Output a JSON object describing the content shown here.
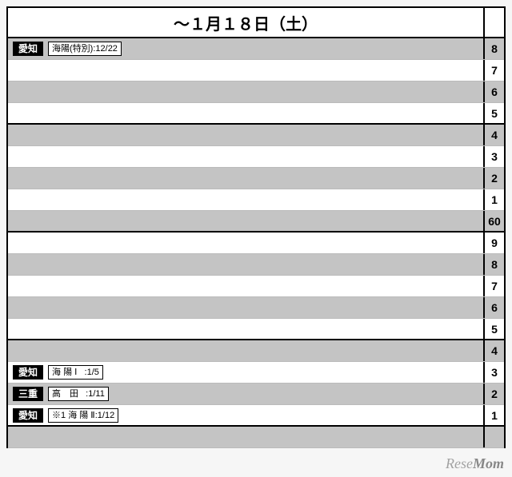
{
  "header": {
    "title": "～１月１８日（土）"
  },
  "colors": {
    "row_gray": "#c4c4c4",
    "row_white": "#ffffff",
    "border": "#000000",
    "tag_bg": "#000000",
    "tag_fg": "#ffffff"
  },
  "watermark": "ReseMom",
  "rows": [
    {
      "num": "8",
      "shade": "gray",
      "section_end": false,
      "entries": [
        {
          "tag": "愛知",
          "text": "海陽(特別):12/22"
        }
      ]
    },
    {
      "num": "7",
      "shade": "white",
      "section_end": false,
      "entries": []
    },
    {
      "num": "6",
      "shade": "gray",
      "section_end": false,
      "entries": []
    },
    {
      "num": "5",
      "shade": "white",
      "section_end": true,
      "entries": []
    },
    {
      "num": "4",
      "shade": "gray",
      "section_end": false,
      "entries": []
    },
    {
      "num": "3",
      "shade": "white",
      "section_end": false,
      "entries": []
    },
    {
      "num": "2",
      "shade": "gray",
      "section_end": false,
      "entries": []
    },
    {
      "num": "1",
      "shade": "white",
      "section_end": false,
      "entries": []
    },
    {
      "num": "60",
      "shade": "gray",
      "section_end": true,
      "entries": []
    },
    {
      "num": "9",
      "shade": "white",
      "section_end": false,
      "entries": []
    },
    {
      "num": "8",
      "shade": "gray",
      "section_end": false,
      "entries": []
    },
    {
      "num": "7",
      "shade": "white",
      "section_end": false,
      "entries": []
    },
    {
      "num": "6",
      "shade": "gray",
      "section_end": false,
      "entries": []
    },
    {
      "num": "5",
      "shade": "white",
      "section_end": true,
      "entries": []
    },
    {
      "num": "4",
      "shade": "gray",
      "section_end": false,
      "entries": []
    },
    {
      "num": "3",
      "shade": "white",
      "section_end": false,
      "entries": [
        {
          "tag": "愛知",
          "text": "海 陽 Ⅰ   :1/5"
        }
      ]
    },
    {
      "num": "2",
      "shade": "gray",
      "section_end": false,
      "entries": [
        {
          "tag": "三重",
          "text": "高　田   :1/11"
        }
      ]
    },
    {
      "num": "1",
      "shade": "white",
      "section_end": true,
      "entries": [
        {
          "tag": "愛知",
          "text": "※1 海 陽 Ⅱ:1/12"
        }
      ]
    },
    {
      "num": "",
      "shade": "gray",
      "section_end": false,
      "entries": []
    }
  ]
}
